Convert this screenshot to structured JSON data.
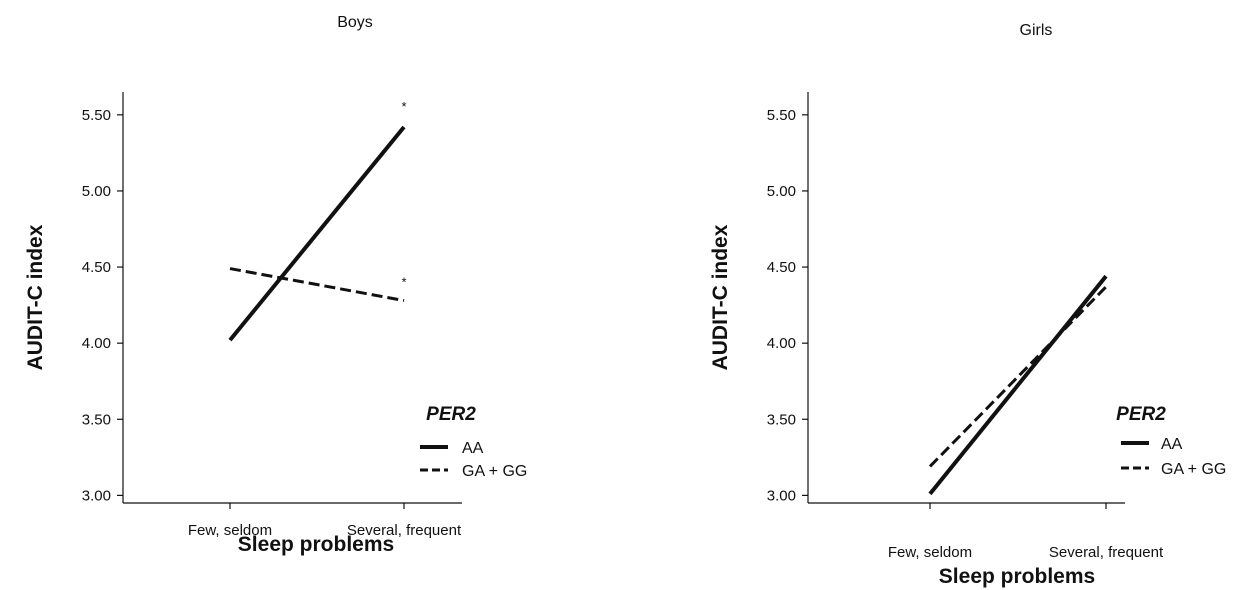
{
  "chart_data": [
    {
      "type": "line",
      "title": "Boys",
      "xlabel": "Sleep problems",
      "ylabel": "AUDIT-C  index",
      "categories": [
        "Few, seldom",
        "Several, frequent"
      ],
      "ylim": [
        2.95,
        5.65
      ],
      "yticks": [
        "3.00",
        "3.50",
        "4.00",
        "4.50",
        "5.00",
        "5.50"
      ],
      "legend_title": "PER2",
      "legend_position": "lower-right",
      "grid": false,
      "series": [
        {
          "name": "AA",
          "style": "solid",
          "values": [
            4.02,
            5.42
          ],
          "marker": "*"
        },
        {
          "name": "GA + GG",
          "style": "dashed",
          "values": [
            4.49,
            4.28
          ],
          "marker": "*"
        }
      ]
    },
    {
      "type": "line",
      "title": "Girls",
      "xlabel": "Sleep problems",
      "ylabel": "AUDIT-C  index",
      "categories": [
        "Few, seldom",
        "Several, frequent"
      ],
      "ylim": [
        2.95,
        5.65
      ],
      "yticks": [
        "3.00",
        "3.50",
        "4.00",
        "4.50",
        "5.00",
        "5.50"
      ],
      "legend_title": "PER2",
      "legend_position": "lower-right",
      "grid": false,
      "series": [
        {
          "name": "AA",
          "style": "solid",
          "values": [
            3.01,
            4.44
          ],
          "marker": ""
        },
        {
          "name": "GA + GG",
          "style": "dashed",
          "values": [
            3.19,
            4.37
          ],
          "marker": ""
        }
      ]
    }
  ],
  "colors": {
    "ink": "#111111"
  }
}
